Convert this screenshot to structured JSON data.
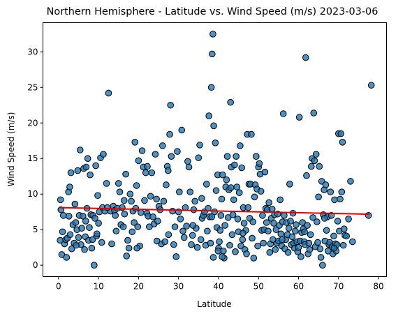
{
  "chart_data": {
    "type": "scatter",
    "title": "Northern Hemisphere - Latitude vs. Wind Speed (m/s) 2023-03-06",
    "xlabel": "Latitude",
    "ylabel": "Wind Speed (m/s)",
    "xlim": [
      -3.9,
      82.0
    ],
    "ylim": [
      -1.6,
      34.1
    ],
    "xticks": [
      0,
      10,
      20,
      30,
      40,
      50,
      60,
      70,
      80
    ],
    "yticks": [
      0,
      5,
      10,
      15,
      20,
      25,
      30
    ],
    "grid": false,
    "marker_color": "#1f77b4",
    "regression_color": "#e00000",
    "regression": {
      "slope": -0.012,
      "intercept": 8.1,
      "x_range": [
        0.3,
        77.8
      ]
    },
    "points": [
      [
        0.4,
        3.5
      ],
      [
        0.5,
        9.2
      ],
      [
        0.6,
        7.8
      ],
      [
        0.8,
        1.5
      ],
      [
        1.0,
        4.7
      ],
      [
        1.5,
        3.0
      ],
      [
        1.8,
        3.6
      ],
      [
        2.0,
        1.1
      ],
      [
        2.2,
        3.8
      ],
      [
        2.5,
        10.3
      ],
      [
        2.6,
        6.9
      ],
      [
        2.8,
        11.0
      ],
      [
        2.9,
        4.3
      ],
      [
        3.1,
        13.0
      ],
      [
        3.3,
        2.3
      ],
      [
        3.6,
        5.7
      ],
      [
        3.9,
        3.1
      ],
      [
        4.1,
        8.6
      ],
      [
        4.3,
        6.0
      ],
      [
        4.6,
        5.0
      ],
      [
        4.8,
        13.3
      ],
      [
        5.0,
        3.9
      ],
      [
        5.2,
        7.0
      ],
      [
        5.4,
        16.2
      ],
      [
        5.6,
        2.9
      ],
      [
        5.8,
        5.2
      ],
      [
        6.1,
        6.9
      ],
      [
        6.3,
        13.6
      ],
      [
        6.5,
        2.2
      ],
      [
        6.7,
        4.0
      ],
      [
        6.9,
        13.8
      ],
      [
        7.1,
        8.0
      ],
      [
        7.3,
        15.0
      ],
      [
        7.5,
        3.5
      ],
      [
        7.7,
        5.3
      ],
      [
        7.9,
        12.7
      ],
      [
        8.1,
        7.1
      ],
      [
        8.3,
        2.4
      ],
      [
        8.5,
        3.6
      ],
      [
        8.6,
        7.0
      ],
      [
        8.9,
        0.0
      ],
      [
        9.1,
        6.6
      ],
      [
        9.3,
        14.0
      ],
      [
        9.5,
        4.1
      ],
      [
        9.8,
        9.8
      ],
      [
        10.0,
        5.9
      ],
      [
        10.2,
        7.5
      ],
      [
        10.5,
        15.1
      ],
      [
        10.8,
        3.2
      ],
      [
        11.0,
        8.1
      ],
      [
        11.2,
        15.6
      ],
      [
        11.6,
        7.6
      ],
      [
        12.0,
        11.5
      ],
      [
        12.5,
        24.2
      ],
      [
        13.0,
        7.6
      ],
      [
        13.3,
        3.0
      ],
      [
        13.7,
        8.3
      ],
      [
        14.0,
        7.7
      ],
      [
        14.4,
        4.8
      ],
      [
        14.7,
        8.0
      ],
      [
        15.0,
        11.5
      ],
      [
        15.3,
        10.3
      ],
      [
        15.6,
        5.7
      ],
      [
        15.9,
        8.1
      ],
      [
        16.2,
        5.4
      ],
      [
        16.5,
        7.2
      ],
      [
        16.8,
        12.8
      ],
      [
        17.0,
        1.3
      ],
      [
        17.3,
        3.5
      ],
      [
        17.6,
        2.4
      ],
      [
        17.9,
        10.0
      ],
      [
        18.2,
        9.0
      ],
      [
        18.4,
        4.7
      ],
      [
        18.6,
        7.6
      ],
      [
        18.9,
        6.0
      ],
      [
        19.1,
        17.3
      ],
      [
        19.3,
        8.0
      ],
      [
        19.5,
        11.2
      ],
      [
        19.8,
        5.4
      ],
      [
        20.0,
        14.7
      ],
      [
        20.3,
        2.7
      ],
      [
        20.6,
        7.4
      ],
      [
        20.9,
        16.1
      ],
      [
        21.2,
        13.8
      ],
      [
        21.5,
        9.1
      ],
      [
        21.8,
        13.0
      ],
      [
        22.1,
        7.3
      ],
      [
        22.4,
        6.9
      ],
      [
        22.7,
        5.4
      ],
      [
        23.0,
        9.7
      ],
      [
        23.3,
        13.0
      ],
      [
        23.6,
        6.8
      ],
      [
        23.9,
        5.8
      ],
      [
        24.2,
        15.6
      ],
      [
        24.5,
        9.3
      ],
      [
        24.8,
        6.2
      ],
      [
        25.1,
        8.3
      ],
      [
        25.4,
        7.8
      ],
      [
        25.7,
        3.0
      ],
      [
        26.0,
        16.8
      ],
      [
        26.3,
        9.0
      ],
      [
        26.6,
        3.3
      ],
      [
        26.9,
        11.3
      ],
      [
        27.2,
        13.9
      ],
      [
        27.5,
        4.3
      ],
      [
        27.8,
        18.4
      ],
      [
        28.0,
        22.5
      ],
      [
        28.2,
        15.3
      ],
      [
        28.5,
        7.6
      ],
      [
        28.8,
        2.9
      ],
      [
        29.1,
        5.4
      ],
      [
        29.4,
        1.2
      ],
      [
        29.7,
        16.0
      ],
      [
        30.0,
        7.5
      ],
      [
        30.2,
        10.3
      ],
      [
        30.5,
        6.5
      ],
      [
        30.8,
        19.0
      ],
      [
        31.1,
        4.8
      ],
      [
        31.4,
        3.9
      ],
      [
        31.7,
        8.1
      ],
      [
        32.0,
        5.5
      ],
      [
        32.3,
        14.6
      ],
      [
        32.6,
        13.8
      ],
      [
        32.9,
        10.3
      ],
      [
        33.2,
        2.9
      ],
      [
        33.5,
        4.2
      ],
      [
        33.8,
        7.8
      ],
      [
        34.1,
        9.0
      ],
      [
        34.4,
        5.2
      ],
      [
        34.7,
        2.5
      ],
      [
        35.0,
        15.1
      ],
      [
        35.3,
        16.9
      ],
      [
        35.6,
        3.6
      ],
      [
        35.9,
        6.6
      ],
      [
        36.2,
        7.0
      ],
      [
        36.5,
        7.5
      ],
      [
        36.8,
        2.8
      ],
      [
        37.0,
        11.4
      ],
      [
        37.2,
        4.8
      ],
      [
        37.4,
        8.0
      ],
      [
        37.6,
        21.0
      ],
      [
        37.8,
        6.8
      ],
      [
        38.0,
        3.1
      ],
      [
        38.2,
        25.0
      ],
      [
        38.4,
        29.7
      ],
      [
        38.6,
        32.5
      ],
      [
        38.8,
        19.6
      ],
      [
        39.0,
        7.5
      ],
      [
        39.2,
        17.2
      ],
      [
        39.4,
        10.5
      ],
      [
        39.6,
        5.3
      ],
      [
        39.8,
        12.7
      ],
      [
        40.0,
        2.4
      ],
      [
        40.2,
        3.3
      ],
      [
        40.4,
        4.9
      ],
      [
        40.6,
        7.0
      ],
      [
        40.8,
        9.3
      ],
      [
        41.0,
        12.7
      ],
      [
        41.2,
        2.0
      ],
      [
        41.4,
        1.0
      ],
      [
        41.6,
        5.6
      ],
      [
        41.8,
        11.0
      ],
      [
        42.0,
        12.0
      ],
      [
        42.2,
        15.3
      ],
      [
        42.4,
        6.7
      ],
      [
        42.6,
        10.6
      ],
      [
        42.8,
        2.8
      ],
      [
        43.0,
        22.9
      ],
      [
        43.2,
        13.8
      ],
      [
        43.4,
        4.3
      ],
      [
        43.6,
        7.1
      ],
      [
        43.8,
        9.2
      ],
      [
        44.0,
        14.1
      ],
      [
        44.2,
        1.9
      ],
      [
        44.4,
        15.3
      ],
      [
        44.6,
        11.0
      ],
      [
        44.8,
        6.5
      ],
      [
        45.0,
        4.7
      ],
      [
        45.2,
        10.2
      ],
      [
        45.4,
        16.8
      ],
      [
        45.6,
        2.7
      ],
      [
        45.8,
        13.7
      ],
      [
        46.0,
        3.6
      ],
      [
        46.2,
        8.1
      ],
      [
        46.4,
        5.9
      ],
      [
        46.6,
        2.2
      ],
      [
        46.8,
        4.9
      ],
      [
        47.0,
        1.6
      ],
      [
        47.2,
        18.4
      ],
      [
        47.4,
        8.1
      ],
      [
        47.6,
        11.4
      ],
      [
        47.8,
        6.6
      ],
      [
        48.0,
        11.4
      ],
      [
        48.2,
        18.4
      ],
      [
        48.4,
        3.8
      ],
      [
        48.6,
        6.1
      ],
      [
        48.8,
        1.0
      ],
      [
        49.0,
        9.6
      ],
      [
        49.2,
        11.3
      ],
      [
        49.4,
        15.3
      ],
      [
        49.6,
        10.7
      ],
      [
        49.8,
        2.7
      ],
      [
        50.0,
        13.8
      ],
      [
        50.2,
        14.3
      ],
      [
        50.4,
        12.8
      ],
      [
        50.6,
        10.4
      ],
      [
        50.8,
        4.9
      ],
      [
        51.0,
        7.0
      ],
      [
        51.2,
        3.1
      ],
      [
        51.4,
        5.0
      ],
      [
        51.6,
        13.1
      ],
      [
        51.8,
        8.0
      ],
      [
        52.0,
        6.0
      ],
      [
        52.2,
        7.8
      ],
      [
        52.4,
        4.8
      ],
      [
        52.6,
        8.8
      ],
      [
        52.8,
        1.8
      ],
      [
        53.0,
        3.0
      ],
      [
        53.2,
        6.6
      ],
      [
        53.4,
        7.9
      ],
      [
        53.6,
        3.6
      ],
      [
        53.8,
        5.9
      ],
      [
        54.0,
        7.1
      ],
      [
        54.2,
        2.2
      ],
      [
        54.4,
        5.0
      ],
      [
        54.6,
        3.1
      ],
      [
        54.8,
        7.2
      ],
      [
        55.0,
        3.4
      ],
      [
        55.2,
        5.6
      ],
      [
        55.4,
        9.2
      ],
      [
        55.6,
        4.4
      ],
      [
        55.8,
        2.7
      ],
      [
        56.0,
        6.1
      ],
      [
        56.2,
        21.3
      ],
      [
        56.4,
        7.0
      ],
      [
        56.6,
        2.3
      ],
      [
        56.8,
        3.6
      ],
      [
        57.0,
        6.0
      ],
      [
        57.2,
        4.3
      ],
      [
        57.4,
        1.8
      ],
      [
        57.6,
        5.2
      ],
      [
        57.8,
        11.4
      ],
      [
        58.0,
        6.2
      ],
      [
        58.2,
        2.9
      ],
      [
        58.4,
        4.0
      ],
      [
        58.6,
        7.3
      ],
      [
        58.8,
        3.1
      ],
      [
        59.0,
        2.4
      ],
      [
        59.2,
        4.8
      ],
      [
        59.4,
        5.7
      ],
      [
        59.6,
        3.3
      ],
      [
        59.8,
        1.9
      ],
      [
        60.0,
        2.5
      ],
      [
        60.2,
        20.8
      ],
      [
        60.4,
        3.4
      ],
      [
        60.6,
        1.2
      ],
      [
        60.8,
        4.6
      ],
      [
        61.0,
        6.0
      ],
      [
        61.2,
        5.1
      ],
      [
        61.4,
        3.3
      ],
      [
        61.6,
        2.9
      ],
      [
        61.8,
        29.2
      ],
      [
        62.0,
        12.6
      ],
      [
        62.2,
        5.6
      ],
      [
        62.4,
        1.6
      ],
      [
        62.6,
        3.1
      ],
      [
        62.8,
        2.2
      ],
      [
        63.0,
        4.3
      ],
      [
        63.2,
        13.9
      ],
      [
        63.4,
        15.0
      ],
      [
        63.6,
        6.7
      ],
      [
        63.8,
        21.4
      ],
      [
        64.0,
        14.7
      ],
      [
        64.2,
        2.6
      ],
      [
        64.4,
        15.6
      ],
      [
        64.6,
        6.1
      ],
      [
        64.8,
        3.2
      ],
      [
        65.0,
        9.6
      ],
      [
        65.2,
        13.9
      ],
      [
        65.4,
        2.3
      ],
      [
        65.6,
        1.1
      ],
      [
        65.8,
        11.8
      ],
      [
        66.0,
        0.0
      ],
      [
        66.2,
        7.1
      ],
      [
        66.4,
        10.6
      ],
      [
        66.6,
        3.4
      ],
      [
        66.8,
        11.3
      ],
      [
        67.0,
        4.9
      ],
      [
        67.2,
        6.8
      ],
      [
        67.4,
        2.0
      ],
      [
        67.6,
        2.9
      ],
      [
        67.8,
        3.2
      ],
      [
        68.0,
        10.3
      ],
      [
        68.2,
        7.0
      ],
      [
        68.4,
        2.6
      ],
      [
        68.6,
        1.6
      ],
      [
        68.8,
        4.1
      ],
      [
        69.0,
        9.2
      ],
      [
        69.2,
        3.0
      ],
      [
        69.4,
        2.0
      ],
      [
        69.6,
        2.9
      ],
      [
        69.8,
        6.2
      ],
      [
        70.0,
        18.5
      ],
      [
        70.2,
        4.8
      ],
      [
        70.4,
        9.3
      ],
      [
        70.6,
        18.5
      ],
      [
        70.8,
        10.3
      ],
      [
        71.0,
        17.3
      ],
      [
        71.2,
        2.8
      ],
      [
        71.4,
        5.1
      ],
      [
        71.6,
        4.2
      ],
      [
        72.0,
        4.1
      ],
      [
        72.5,
        6.5
      ],
      [
        73.0,
        11.8
      ],
      [
        73.5,
        3.3
      ],
      [
        77.5,
        7.0
      ],
      [
        78.2,
        25.3
      ],
      [
        38.3,
        6.8
      ],
      [
        38.7,
        1.1
      ],
      [
        39.9,
        2.0
      ],
      [
        40.9,
        1.2
      ],
      [
        43.1,
        10.9
      ],
      [
        46.1,
        4.5
      ],
      [
        55.9,
        3.6
      ],
      [
        61.5,
        4.7
      ],
      [
        66.5,
        6.6
      ],
      [
        68.9,
        2.4
      ],
      [
        35.8,
        9.4
      ],
      [
        33.6,
        5.6
      ],
      [
        27.4,
        13.3
      ],
      [
        24.6,
        3.4
      ],
      [
        22.2,
        13.9
      ],
      [
        19.6,
        2.4
      ],
      [
        16.4,
        9.1
      ],
      [
        14.2,
        7.0
      ],
      [
        12.2,
        8.1
      ],
      [
        9.6,
        4.4
      ],
      [
        6.8,
        6.2
      ],
      [
        4.4,
        2.8
      ],
      [
        1.2,
        7.0
      ]
    ]
  }
}
